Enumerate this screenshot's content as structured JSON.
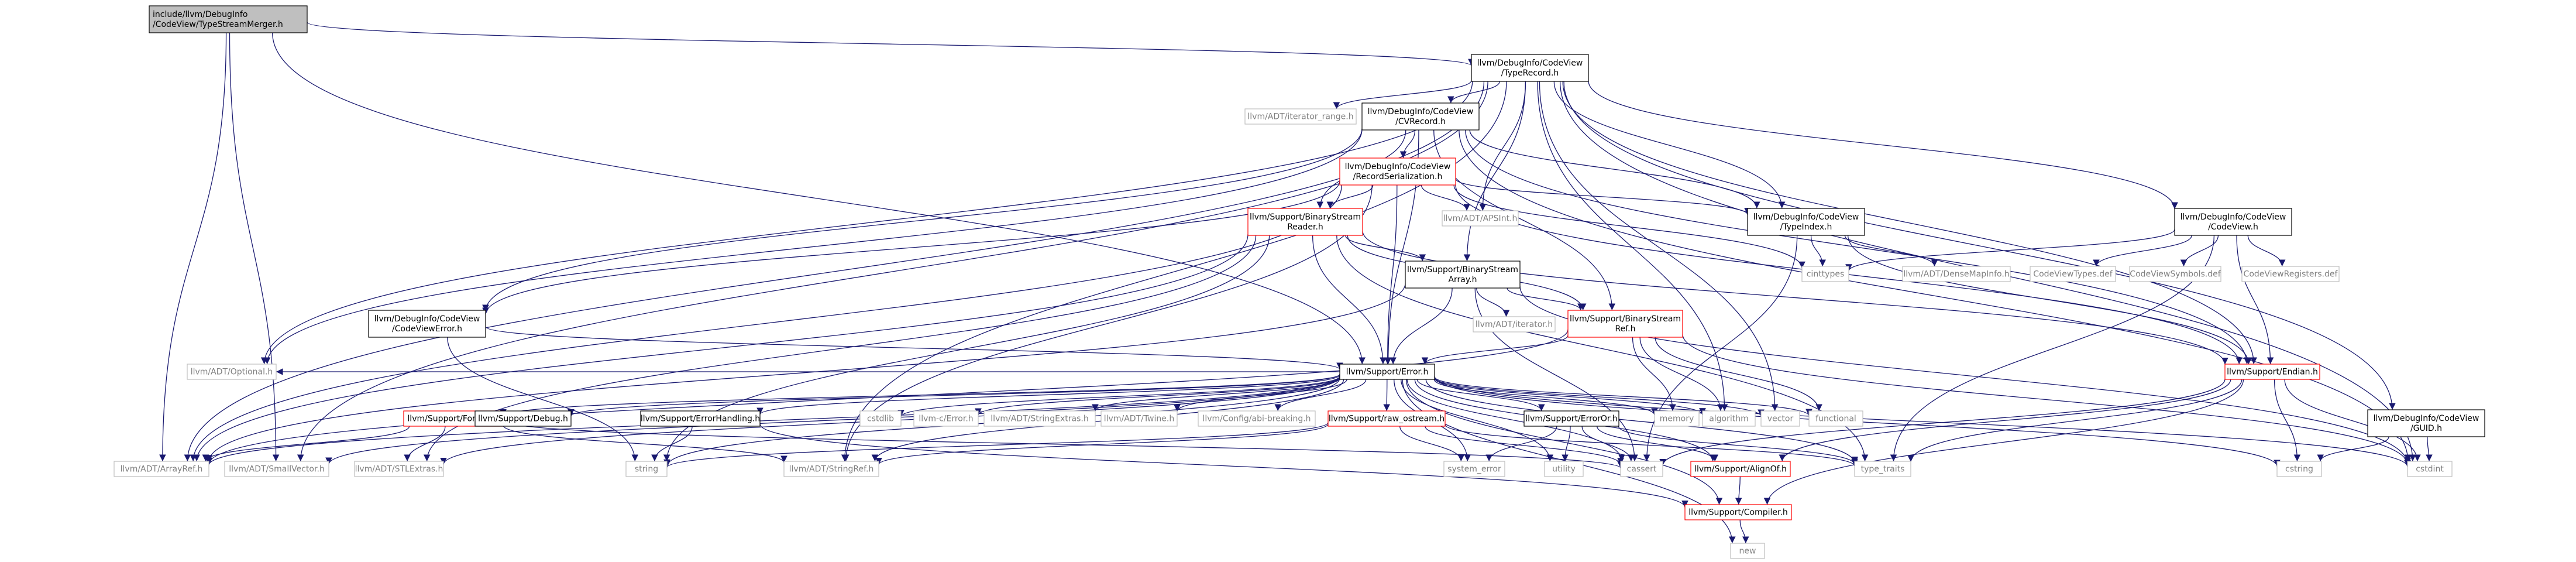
{
  "colors": {
    "edge": "#191970",
    "border_black": "#000000",
    "border_red": "#ff0000",
    "border_gray": "#bfbfbf",
    "root_fill": "#bfbfbf",
    "text_muted": "#7f7f7f"
  },
  "nodes": [
    {
      "id": "root",
      "lines": [
        "include/llvm/DebugInfo",
        "/CodeView/TypeStreamMerger.h"
      ],
      "style": "root"
    },
    {
      "id": "typerecord",
      "lines": [
        "llvm/DebugInfo/CodeView",
        "/TypeRecord.h"
      ],
      "style": "black"
    },
    {
      "id": "iterrange",
      "lines": [
        "llvm/ADT/iterator_range.h"
      ],
      "style": "gray"
    },
    {
      "id": "cvrecord",
      "lines": [
        "llvm/DebugInfo/CodeView",
        "/CVRecord.h"
      ],
      "style": "black"
    },
    {
      "id": "recser",
      "lines": [
        "llvm/DebugInfo/CodeView",
        "/RecordSerialization.h"
      ],
      "style": "red"
    },
    {
      "id": "apsint",
      "lines": [
        "llvm/ADT/APSInt.h"
      ],
      "style": "gray"
    },
    {
      "id": "typeindex",
      "lines": [
        "llvm/DebugInfo/CodeView",
        "/TypeIndex.h"
      ],
      "style": "black"
    },
    {
      "id": "codeviewh",
      "lines": [
        "llvm/DebugInfo/CodeView",
        "/CodeView.h"
      ],
      "style": "black"
    },
    {
      "id": "bsreader",
      "lines": [
        "llvm/Support/BinaryStream",
        "Reader.h"
      ],
      "style": "red"
    },
    {
      "id": "cinttypes",
      "lines": [
        "cinttypes"
      ],
      "style": "gray"
    },
    {
      "id": "densemapinfo",
      "lines": [
        "llvm/ADT/DenseMapInfo.h"
      ],
      "style": "gray"
    },
    {
      "id": "cvtypesdef",
      "lines": [
        "CodeViewTypes.def"
      ],
      "style": "gray"
    },
    {
      "id": "cvsymdef",
      "lines": [
        "CodeViewSymbols.def"
      ],
      "style": "gray"
    },
    {
      "id": "cvregdef",
      "lines": [
        "CodeViewRegisters.def"
      ],
      "style": "gray"
    },
    {
      "id": "bsarray",
      "lines": [
        "llvm/Support/BinaryStream",
        "Array.h"
      ],
      "style": "black"
    },
    {
      "id": "cverror",
      "lines": [
        "llvm/DebugInfo/CodeView",
        "/CodeViewError.h"
      ],
      "style": "black"
    },
    {
      "id": "iteratorh",
      "lines": [
        "llvm/ADT/iterator.h"
      ],
      "style": "gray"
    },
    {
      "id": "bsref",
      "lines": [
        "llvm/Support/BinaryStream",
        "Ref.h"
      ],
      "style": "red"
    },
    {
      "id": "optional",
      "lines": [
        "llvm/ADT/Optional.h"
      ],
      "style": "gray"
    },
    {
      "id": "error",
      "lines": [
        "llvm/Support/Error.h"
      ],
      "style": "black"
    },
    {
      "id": "endian",
      "lines": [
        "llvm/Support/Endian.h"
      ],
      "style": "red"
    },
    {
      "id": "guid",
      "lines": [
        "llvm/DebugInfo/CodeView",
        "/GUID.h"
      ],
      "style": "black"
    },
    {
      "id": "format",
      "lines": [
        "llvm/Support/Format.h"
      ],
      "style": "red"
    },
    {
      "id": "debug",
      "lines": [
        "llvm/Support/Debug.h"
      ],
      "style": "black"
    },
    {
      "id": "cstdlib",
      "lines": [
        "cstdlib"
      ],
      "style": "gray"
    },
    {
      "id": "llvmcerror",
      "lines": [
        "llvm-c/Error.h"
      ],
      "style": "gray"
    },
    {
      "id": "stringextras",
      "lines": [
        "llvm/ADT/StringExtras.h"
      ],
      "style": "gray"
    },
    {
      "id": "twine",
      "lines": [
        "llvm/ADT/Twine.h"
      ],
      "style": "gray"
    },
    {
      "id": "errhandling",
      "lines": [
        "llvm/Support/ErrorHandling.h"
      ],
      "style": "black"
    },
    {
      "id": "abibreaking",
      "lines": [
        "llvm/Config/abi-breaking.h"
      ],
      "style": "gray"
    },
    {
      "id": "rawostream",
      "lines": [
        "llvm/Support/raw_ostream.h"
      ],
      "style": "red"
    },
    {
      "id": "erroror",
      "lines": [
        "llvm/Support/ErrorOr.h"
      ],
      "style": "black"
    },
    {
      "id": "memory",
      "lines": [
        "memory"
      ],
      "style": "gray"
    },
    {
      "id": "algorithm",
      "lines": [
        "algorithm"
      ],
      "style": "gray"
    },
    {
      "id": "vector",
      "lines": [
        "vector"
      ],
      "style": "gray"
    },
    {
      "id": "functional",
      "lines": [
        "functional"
      ],
      "style": "gray"
    },
    {
      "id": "arrayref",
      "lines": [
        "llvm/ADT/ArrayRef.h"
      ],
      "style": "gray"
    },
    {
      "id": "smallvector",
      "lines": [
        "llvm/ADT/SmallVector.h"
      ],
      "style": "gray"
    },
    {
      "id": "stlextras",
      "lines": [
        "llvm/ADT/STLExtras.h"
      ],
      "style": "gray"
    },
    {
      "id": "string",
      "lines": [
        "string"
      ],
      "style": "gray"
    },
    {
      "id": "stringref",
      "lines": [
        "llvm/ADT/StringRef.h"
      ],
      "style": "gray"
    },
    {
      "id": "systemerror",
      "lines": [
        "system_error"
      ],
      "style": "gray"
    },
    {
      "id": "utility",
      "lines": [
        "utility"
      ],
      "style": "gray"
    },
    {
      "id": "cassert",
      "lines": [
        "cassert"
      ],
      "style": "gray"
    },
    {
      "id": "alignof",
      "lines": [
        "llvm/Support/AlignOf.h"
      ],
      "style": "red"
    },
    {
      "id": "typetraits",
      "lines": [
        "type_traits"
      ],
      "style": "gray"
    },
    {
      "id": "cstring",
      "lines": [
        "cstring"
      ],
      "style": "gray"
    },
    {
      "id": "cstdint",
      "lines": [
        "cstdint"
      ],
      "style": "gray"
    },
    {
      "id": "compiler",
      "lines": [
        "llvm/Support/Compiler.h"
      ],
      "style": "red"
    },
    {
      "id": "new",
      "lines": [
        "new"
      ],
      "style": "gray"
    }
  ],
  "edges": [
    [
      "root",
      "typerecord"
    ],
    [
      "root",
      "arrayref"
    ],
    [
      "root",
      "smallvector"
    ],
    [
      "root",
      "error"
    ],
    [
      "typerecord",
      "iterrange"
    ],
    [
      "typerecord",
      "cvrecord"
    ],
    [
      "typerecord",
      "apsint"
    ],
    [
      "typerecord",
      "typeindex"
    ],
    [
      "typerecord",
      "codeviewh"
    ],
    [
      "typerecord",
      "bsarray"
    ],
    [
      "typerecord",
      "optional"
    ],
    [
      "typerecord",
      "guid"
    ],
    [
      "typerecord",
      "endian"
    ],
    [
      "typerecord",
      "arrayref"
    ],
    [
      "typerecord",
      "smallvector"
    ],
    [
      "typerecord",
      "stringref"
    ],
    [
      "typerecord",
      "cstdint"
    ],
    [
      "typerecord",
      "vector"
    ],
    [
      "typerecord",
      "algorithm"
    ],
    [
      "cvrecord",
      "recser"
    ],
    [
      "cvrecord",
      "typeindex"
    ],
    [
      "cvrecord",
      "cverror"
    ],
    [
      "cvrecord",
      "bsreader"
    ],
    [
      "cvrecord",
      "bsref"
    ],
    [
      "cvrecord",
      "error"
    ],
    [
      "cvrecord",
      "optional"
    ],
    [
      "cvrecord",
      "endian"
    ],
    [
      "cvrecord",
      "cstdint"
    ],
    [
      "recser",
      "apsint"
    ],
    [
      "recser",
      "cverror"
    ],
    [
      "recser",
      "typeindex"
    ],
    [
      "recser",
      "bsreader"
    ],
    [
      "recser",
      "error"
    ],
    [
      "recser",
      "cinttypes"
    ],
    [
      "recser",
      "stringref"
    ],
    [
      "recser",
      "arrayref"
    ],
    [
      "recser",
      "endian"
    ],
    [
      "typeindex",
      "cinttypes"
    ],
    [
      "typeindex",
      "densemapinfo"
    ],
    [
      "typeindex",
      "endian"
    ],
    [
      "typeindex",
      "cassert"
    ],
    [
      "codeviewh",
      "cvtypesdef"
    ],
    [
      "codeviewh",
      "cvsymdef"
    ],
    [
      "codeviewh",
      "cvregdef"
    ],
    [
      "codeviewh",
      "cinttypes"
    ],
    [
      "codeviewh",
      "endian"
    ],
    [
      "codeviewh",
      "typetraits"
    ],
    [
      "bsreader",
      "bsarray"
    ],
    [
      "bsreader",
      "bsref"
    ],
    [
      "bsreader",
      "error"
    ],
    [
      "bsreader",
      "arrayref"
    ],
    [
      "bsreader",
      "stlextras"
    ],
    [
      "bsreader",
      "string"
    ],
    [
      "bsreader",
      "typetraits"
    ],
    [
      "bsreader",
      "endian"
    ],
    [
      "bsarray",
      "iteratorh"
    ],
    [
      "bsarray",
      "bsref"
    ],
    [
      "bsarray",
      "error"
    ],
    [
      "bsarray",
      "arrayref"
    ],
    [
      "bsarray",
      "cassert"
    ],
    [
      "bsarray",
      "cstdint"
    ],
    [
      "cverror",
      "error"
    ],
    [
      "cverror",
      "string"
    ],
    [
      "bsref",
      "error"
    ],
    [
      "bsref",
      "arrayref"
    ],
    [
      "bsref",
      "algorithm"
    ],
    [
      "bsref",
      "memory"
    ],
    [
      "bsref",
      "cstdint"
    ],
    [
      "bsref",
      "functional"
    ],
    [
      "error",
      "format"
    ],
    [
      "error",
      "debug"
    ],
    [
      "error",
      "cstdlib"
    ],
    [
      "error",
      "llvmcerror"
    ],
    [
      "error",
      "stringextras"
    ],
    [
      "error",
      "twine"
    ],
    [
      "error",
      "errhandling"
    ],
    [
      "error",
      "abibreaking"
    ],
    [
      "error",
      "rawostream"
    ],
    [
      "error",
      "erroror"
    ],
    [
      "error",
      "memory"
    ],
    [
      "error",
      "algorithm"
    ],
    [
      "error",
      "vector"
    ],
    [
      "error",
      "functional"
    ],
    [
      "error",
      "arrayref"
    ],
    [
      "error",
      "smallvector"
    ],
    [
      "error",
      "stlextras"
    ],
    [
      "error",
      "string"
    ],
    [
      "error",
      "stringref"
    ],
    [
      "error",
      "utility"
    ],
    [
      "error",
      "cassert"
    ],
    [
      "error",
      "alignof"
    ],
    [
      "error",
      "typetraits"
    ],
    [
      "error",
      "cstring"
    ],
    [
      "error",
      "cstdint"
    ],
    [
      "error",
      "compiler"
    ],
    [
      "error",
      "new"
    ],
    [
      "error",
      "systemerror"
    ],
    [
      "error",
      "optional"
    ],
    [
      "endian",
      "alignof"
    ],
    [
      "endian",
      "compiler"
    ],
    [
      "endian",
      "cassert"
    ],
    [
      "endian",
      "typetraits"
    ],
    [
      "endian",
      "cstring"
    ],
    [
      "endian",
      "cstdint"
    ],
    [
      "guid",
      "cstdint"
    ],
    [
      "guid",
      "cstring"
    ],
    [
      "format",
      "arrayref"
    ],
    [
      "format",
      "stlextras"
    ],
    [
      "format",
      "stringref"
    ],
    [
      "format",
      "cassert"
    ],
    [
      "errhandling",
      "compiler"
    ],
    [
      "errhandling",
      "string"
    ],
    [
      "rawostream",
      "stringref"
    ],
    [
      "rawostream",
      "cassert"
    ],
    [
      "rawostream",
      "systemerror"
    ],
    [
      "rawostream",
      "string"
    ],
    [
      "rawostream",
      "typetraits"
    ],
    [
      "erroror",
      "alignof"
    ],
    [
      "erroror",
      "cassert"
    ],
    [
      "erroror",
      "systemerror"
    ],
    [
      "erroror",
      "typetraits"
    ],
    [
      "erroror",
      "utility"
    ],
    [
      "alignof",
      "compiler"
    ],
    [
      "compiler",
      "new"
    ]
  ]
}
